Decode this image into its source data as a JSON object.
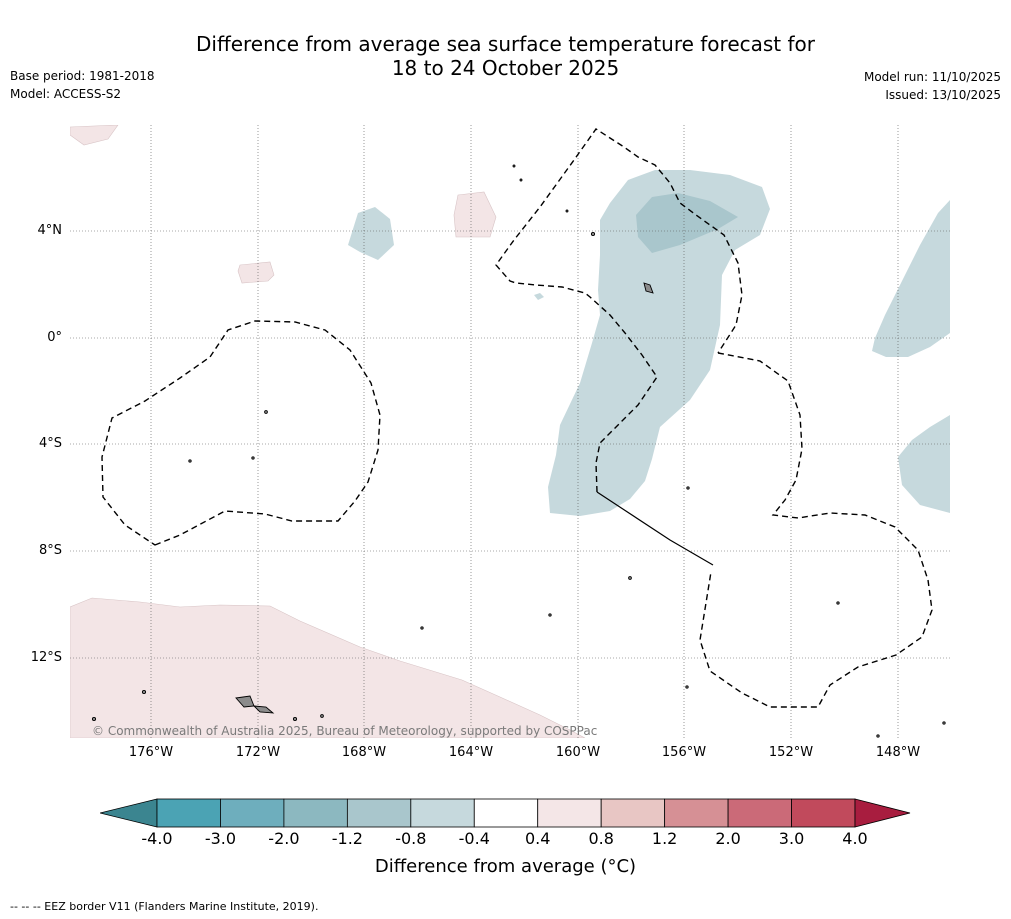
{
  "title": {
    "line1": "Difference from average sea surface temperature forecast for",
    "line2": "18 to 24 October 2025"
  },
  "meta": {
    "base_period": "Base period: 1981-2018",
    "model": "Model: ACCESS-S2",
    "model_run": "Model run: 11/10/2025",
    "issued": "Issued: 13/10/2025"
  },
  "map": {
    "copyright": "© Commonwealth of Australia 2025, Bureau of Meteorology, supported by COSPPac",
    "lat_labels": [
      "4°N",
      "0°",
      "4°S",
      "8°S",
      "12°S"
    ],
    "lon_labels": [
      "176°W",
      "172°W",
      "168°W",
      "164°W",
      "160°W",
      "156°W",
      "152°W",
      "148°W"
    ],
    "anomaly_colors": {
      "cool_light": "#c6d9dd",
      "cool_mid": "#a9c6cc",
      "warm_light": "#f3e5e6",
      "land": "#8c8c8c"
    }
  },
  "colorbar": {
    "ticks": [
      "-4.0",
      "-3.0",
      "-2.0",
      "-1.2",
      "-0.8",
      "-0.4",
      "0.4",
      "0.8",
      "1.2",
      "2.0",
      "3.0",
      "4.0"
    ],
    "colors": [
      "#4ba3b4",
      "#6eaebd",
      "#8cb8c0",
      "#a9c6cc",
      "#c6d9dd",
      "#ffffff",
      "#f4e6e7",
      "#e8c6c4",
      "#d69095",
      "#cb6a78",
      "#c14a5c"
    ],
    "low_extend_color": "#3b8590",
    "high_extend_color": "#a81d3f",
    "label": "Difference from average (°C)"
  },
  "footer": "-- -- -- EEZ border V11 (Flanders Marine Institute, 2019)."
}
